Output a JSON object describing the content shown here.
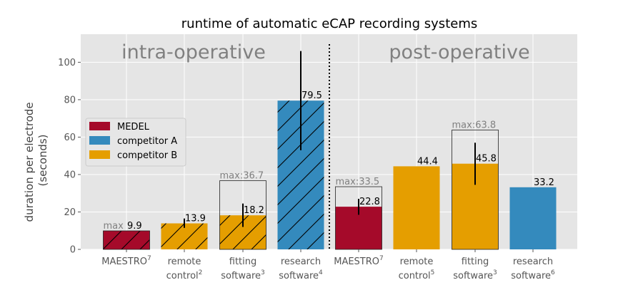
{
  "chart_data": {
    "type": "bar",
    "title": "runtime of automatic eCAP recording systems",
    "ylabel_lines": [
      "duration per electrode",
      "(seconds)"
    ],
    "ylim": [
      0,
      115
    ],
    "yticks": [
      0,
      20,
      40,
      60,
      80,
      100
    ],
    "grid": true,
    "legend_placement": "center-left",
    "sections": [
      "intra-operative",
      "post-operative"
    ],
    "series": [
      {
        "name": "MEDEL",
        "color": "#a50a2a"
      },
      {
        "name": "competitor A",
        "color": "#348abd"
      },
      {
        "name": "competitor B",
        "color": "#e59e00"
      }
    ],
    "bars": [
      {
        "label": "MAESTRO",
        "sup": "7",
        "label2": "",
        "series": "MEDEL",
        "value": 9.9,
        "max": 9.9,
        "max_text": "max",
        "err": [
          9.9,
          9.9
        ],
        "hatched": true,
        "section": "intra-operative"
      },
      {
        "label": "remote",
        "sup": "2",
        "label2": "control",
        "series": "competitor B",
        "value": 13.9,
        "max": null,
        "max_text": "",
        "err": [
          11.5,
          16.5
        ],
        "hatched": true,
        "section": "intra-operative"
      },
      {
        "label": "fitting",
        "sup": "3",
        "label2": "software",
        "series": "competitor B",
        "value": 18.2,
        "max": 36.7,
        "max_text": "max:36.7",
        "err": [
          12,
          24.5
        ],
        "hatched": true,
        "section": "intra-operative"
      },
      {
        "label": "research",
        "sup": "4",
        "label2": "software",
        "series": "competitor A",
        "value": 79.5,
        "max": null,
        "max_text": "",
        "err": [
          53,
          106
        ],
        "hatched": true,
        "section": "intra-operative"
      },
      {
        "label": "MAESTRO",
        "sup": "7",
        "label2": "",
        "series": "MEDEL",
        "value": 22.8,
        "max": 33.5,
        "max_text": "max:33.5",
        "err": [
          18.5,
          27
        ],
        "hatched": false,
        "section": "post-operative"
      },
      {
        "label": "remote",
        "sup": "5",
        "label2": "control",
        "series": "competitor B",
        "value": 44.4,
        "max": null,
        "max_text": "",
        "err": null,
        "hatched": false,
        "section": "post-operative"
      },
      {
        "label": "fitting",
        "sup": "3",
        "label2": "software",
        "series": "competitor B",
        "value": 45.8,
        "max": 63.8,
        "max_text": "max:63.8",
        "err": [
          34.5,
          57
        ],
        "hatched": false,
        "section": "post-operative"
      },
      {
        "label": "research",
        "sup": "6",
        "label2": "software",
        "series": "competitor A",
        "value": 33.2,
        "max": null,
        "max_text": "",
        "err": null,
        "hatched": false,
        "section": "post-operative"
      }
    ],
    "value_labels": [
      "9.9",
      "13.9",
      "18.2",
      "79.5",
      "22.8",
      "44.4",
      "45.8",
      "33.2"
    ]
  }
}
